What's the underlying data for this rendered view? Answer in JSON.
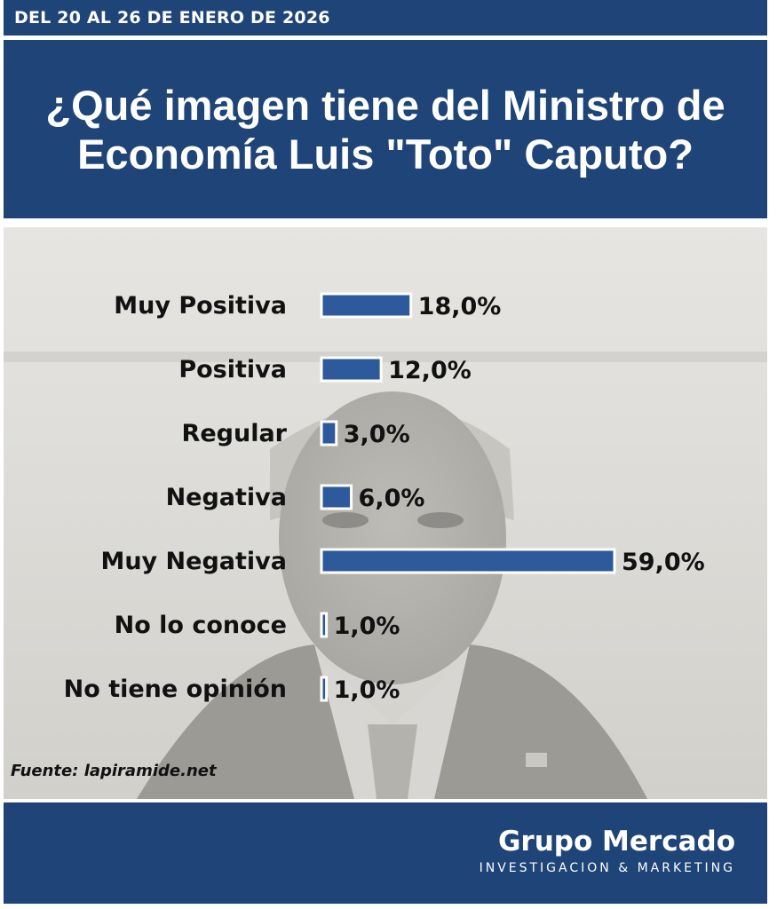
{
  "header": {
    "date_range": "DEL 20 AL 26 DE ENERO DE 2026",
    "title": "¿Qué imagen tiene del Ministro de Economía Luis \"Toto\" Caputo?"
  },
  "colors": {
    "header_bg": "#1f4478",
    "bar_fill": "#2c5a9a",
    "bar_outline": "#ffffff",
    "text": "#111111"
  },
  "chart_data": {
    "type": "bar",
    "orientation": "horizontal",
    "title": "¿Qué imagen tiene del Ministro de Economía Luis \"Toto\" Caputo?",
    "categories": [
      "Muy Positiva",
      "Positiva",
      "Regular",
      "Negativa",
      "Muy Negativa",
      "No lo conoce",
      "No tiene opinión"
    ],
    "values": [
      18.0,
      12.0,
      3.0,
      6.0,
      59.0,
      1.0,
      1.0
    ],
    "value_labels": [
      "18,0%",
      "12,0%",
      "3,0%",
      "6,0%",
      "59,0%",
      "1,0%",
      "1,0%"
    ],
    "unit": "%",
    "xlim": [
      0,
      59
    ],
    "grid": false,
    "legend": "none"
  },
  "source": "Fuente: lapiramide.net",
  "footer": {
    "brand": "Grupo Mercado",
    "tagline": "INVESTIGACION & MARKETING"
  }
}
